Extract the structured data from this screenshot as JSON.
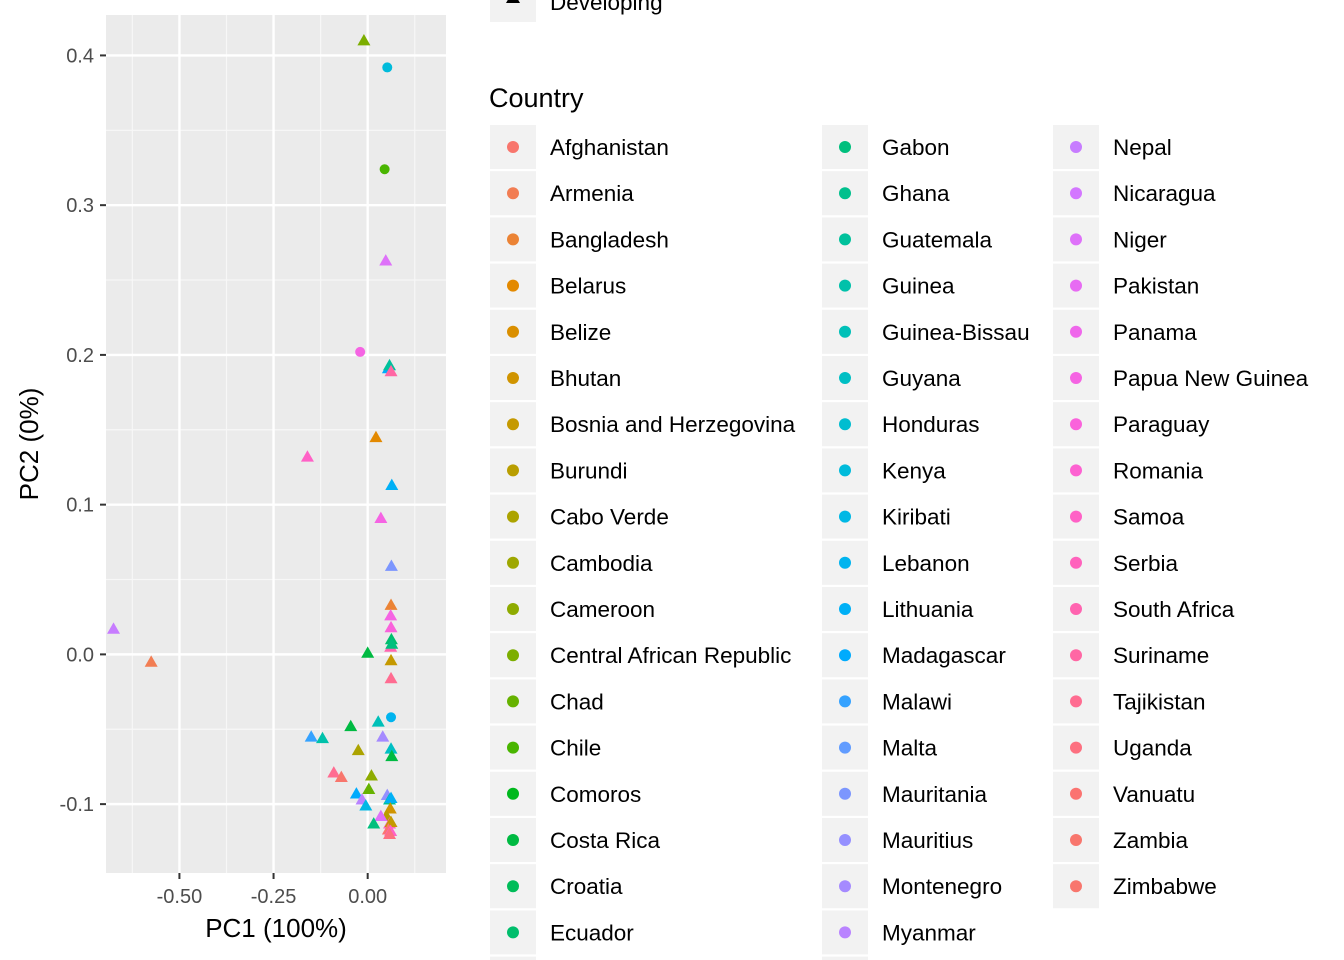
{
  "chart_data": {
    "type": "scatter",
    "xlabel": "PC1 (100%)",
    "ylabel": "PC2 (0%)",
    "xlim": [
      -0.695,
      0.208
    ],
    "ylim": [
      -0.146,
      0.427
    ],
    "x_ticks": [
      -0.5,
      -0.25,
      0.0
    ],
    "x_tick_labels": [
      "-0.50",
      "-0.25",
      "0.00"
    ],
    "y_ticks": [
      -0.1,
      0.0,
      0.1,
      0.2,
      0.3,
      0.4
    ],
    "y_tick_labels": [
      "-0.1",
      "0.0",
      "0.1",
      "0.2",
      "0.3",
      "0.4"
    ],
    "grid": true,
    "shape_legend": {
      "title": "",
      "entries": [
        {
          "label": "Developing",
          "shape": "triangle"
        }
      ]
    },
    "color_legend": {
      "title": "Country",
      "placement": "right",
      "entries": [
        {
          "label": "Afghanistan",
          "color": "#F8766D"
        },
        {
          "label": "Armenia",
          "color": "#F27D53"
        },
        {
          "label": "Bangladesh",
          "color": "#EB8335"
        },
        {
          "label": "Belarus",
          "color": "#E38900"
        },
        {
          "label": "Belize",
          "color": "#DA8F00"
        },
        {
          "label": "Bhutan",
          "color": "#D09400"
        },
        {
          "label": "Bosnia and Herzegovina",
          "color": "#C59900"
        },
        {
          "label": "Burundi",
          "color": "#B99E00"
        },
        {
          "label": "Cabo Verde",
          "color": "#ACA300"
        },
        {
          "label": "Cambodia",
          "color": "#9EA700"
        },
        {
          "label": "Cameroon",
          "color": "#8EAB00"
        },
        {
          "label": "Central African Republic",
          "color": "#7CAE00"
        },
        {
          "label": "Chad",
          "color": "#66B200"
        },
        {
          "label": "Chile",
          "color": "#49B500"
        },
        {
          "label": "Comoros",
          "color": "#00B81D"
        },
        {
          "label": "Costa Rica",
          "color": "#00BA42"
        },
        {
          "label": "Croatia",
          "color": "#00BC59"
        },
        {
          "label": "Ecuador",
          "color": "#00BE6C"
        },
        {
          "label": "Gabon",
          "color": "#00BF7D"
        },
        {
          "label": "Ghana",
          "color": "#00C08D"
        },
        {
          "label": "Guatemala",
          "color": "#00C19C"
        },
        {
          "label": "Guinea",
          "color": "#00C1AA"
        },
        {
          "label": "Guinea-Bissau",
          "color": "#00C0B8"
        },
        {
          "label": "Guyana",
          "color": "#00BFC4"
        },
        {
          "label": "Honduras",
          "color": "#00BDD0"
        },
        {
          "label": "Kenya",
          "color": "#00BBDB"
        },
        {
          "label": "Kiribati",
          "color": "#00B8E5"
        },
        {
          "label": "Lebanon",
          "color": "#00B4EF"
        },
        {
          "label": "Lithuania",
          "color": "#00B0F6"
        },
        {
          "label": "Madagascar",
          "color": "#00ABFD"
        },
        {
          "label": "Malawi",
          "color": "#35A2FF"
        },
        {
          "label": "Malta",
          "color": "#619CFF"
        },
        {
          "label": "Mauritania",
          "color": "#7C96FE"
        },
        {
          "label": "Mauritius",
          "color": "#9590FF"
        },
        {
          "label": "Montenegro",
          "color": "#A58AFF"
        },
        {
          "label": "Myanmar",
          "color": "#B983FF"
        },
        {
          "label": "Nepal",
          "color": "#C77CFF"
        },
        {
          "label": "Nicaragua",
          "color": "#D376FF"
        },
        {
          "label": "Niger",
          "color": "#DE71F9"
        },
        {
          "label": "Pakistan",
          "color": "#E76BF3"
        },
        {
          "label": "Panama",
          "color": "#EF67EB"
        },
        {
          "label": "Papua New Guinea",
          "color": "#F564E3"
        },
        {
          "label": "Paraguay",
          "color": "#FA62DB"
        },
        {
          "label": "Romania",
          "color": "#FD61D1"
        },
        {
          "label": "Samoa",
          "color": "#FF61C6"
        },
        {
          "label": "Serbia",
          "color": "#FF62BC"
        },
        {
          "label": "South Africa",
          "color": "#FF64B0"
        },
        {
          "label": "Suriname",
          "color": "#FF67A4"
        },
        {
          "label": "Tajikistan",
          "color": "#FF6C91"
        },
        {
          "label": "Uganda",
          "color": "#FD7080"
        },
        {
          "label": "Vanuatu",
          "color": "#FB7370"
        },
        {
          "label": "Zambia",
          "color": "#F8766D"
        },
        {
          "label": "Zimbabwe",
          "color": "#F8766D"
        }
      ],
      "visible_order_columns": [
        [
          "Afghanistan",
          "Armenia",
          "Bangladesh",
          "Belarus",
          "Belize",
          "Bhutan",
          "Bosnia and Herzegovina",
          "Burundi",
          "Cabo Verde",
          "Cambodia",
          "Cameroon",
          "Central African Republic",
          "Chad",
          "Chile",
          "Comoros",
          "Costa Rica",
          "Croatia",
          "Ecuador"
        ],
        [
          "Gabon",
          "Ghana",
          "Guatemala",
          "Guinea",
          "Guinea-Bissau",
          "Guyana",
          "Honduras",
          "Kenya",
          "Kiribati",
          "Lebanon",
          "Lithuania",
          "Madagascar",
          "Malawi",
          "Malta",
          "Mauritania",
          "Mauritius",
          "Montenegro",
          "Myanmar"
        ],
        [
          "Nepal",
          "Nicaragua",
          "Niger",
          "Pakistan",
          "Panama",
          "Papua New Guinea",
          "Paraguay",
          "Romania",
          "Samoa",
          "Serbia",
          "South Africa",
          "Suriname",
          "Tajikistan",
          "Uganda",
          "Vanuatu",
          "Zambia",
          "Zimbabwe"
        ]
      ]
    },
    "points": [
      {
        "x": -0.01,
        "y": 0.41,
        "shape": "triangle",
        "color": "#7CAE00"
      },
      {
        "x": 0.052,
        "y": 0.392,
        "shape": "circle",
        "color": "#00BBDB"
      },
      {
        "x": 0.045,
        "y": 0.324,
        "shape": "circle",
        "color": "#49B500"
      },
      {
        "x": 0.048,
        "y": 0.263,
        "shape": "triangle",
        "color": "#DE71F9"
      },
      {
        "x": -0.02,
        "y": 0.202,
        "shape": "circle",
        "color": "#F564E3"
      },
      {
        "x": 0.055,
        "y": 0.191,
        "shape": "triangle",
        "color": "#00ABFD"
      },
      {
        "x": 0.058,
        "y": 0.193,
        "shape": "triangle",
        "color": "#00C19C"
      },
      {
        "x": 0.062,
        "y": 0.189,
        "shape": "triangle",
        "color": "#FF67A4"
      },
      {
        "x": -0.16,
        "y": 0.132,
        "shape": "triangle",
        "color": "#FF61C6"
      },
      {
        "x": 0.022,
        "y": 0.145,
        "shape": "triangle",
        "color": "#E38900"
      },
      {
        "x": 0.064,
        "y": 0.113,
        "shape": "triangle",
        "color": "#00B0F6"
      },
      {
        "x": 0.035,
        "y": 0.091,
        "shape": "triangle",
        "color": "#F564E3"
      },
      {
        "x": 0.063,
        "y": 0.059,
        "shape": "triangle",
        "color": "#7C96FE"
      },
      {
        "x": 0.062,
        "y": 0.033,
        "shape": "triangle",
        "color": "#EB8335"
      },
      {
        "x": 0.061,
        "y": 0.026,
        "shape": "triangle",
        "color": "#F564E3"
      },
      {
        "x": 0.062,
        "y": 0.018,
        "shape": "triangle",
        "color": "#FA62DB"
      },
      {
        "x": 0.063,
        "y": 0.01,
        "shape": "triangle",
        "color": "#00BE6C"
      },
      {
        "x": 0.061,
        "y": 0.005,
        "shape": "triangle",
        "color": "#FF64B0"
      },
      {
        "x": 0.064,
        "y": 0.007,
        "shape": "triangle",
        "color": "#00BF7D"
      },
      {
        "x": -0.675,
        "y": 0.017,
        "shape": "triangle",
        "color": "#C77CFF"
      },
      {
        "x": -0.575,
        "y": -0.005,
        "shape": "triangle",
        "color": "#F27D53"
      },
      {
        "x": 0.0,
        "y": 0.001,
        "shape": "triangle",
        "color": "#00BA42"
      },
      {
        "x": 0.062,
        "y": -0.004,
        "shape": "triangle",
        "color": "#C59900"
      },
      {
        "x": 0.062,
        "y": -0.016,
        "shape": "triangle",
        "color": "#FF6C91"
      },
      {
        "x": 0.062,
        "y": -0.042,
        "shape": "circle",
        "color": "#00B4EF"
      },
      {
        "x": 0.028,
        "y": -0.045,
        "shape": "triangle",
        "color": "#00C0B8"
      },
      {
        "x": -0.045,
        "y": -0.048,
        "shape": "triangle",
        "color": "#00BA42"
      },
      {
        "x": 0.04,
        "y": -0.055,
        "shape": "triangle",
        "color": "#A58AFF"
      },
      {
        "x": -0.15,
        "y": -0.055,
        "shape": "triangle",
        "color": "#35A2FF"
      },
      {
        "x": -0.12,
        "y": -0.056,
        "shape": "triangle",
        "color": "#00C1AA"
      },
      {
        "x": 0.062,
        "y": -0.063,
        "shape": "triangle",
        "color": "#00BFC4"
      },
      {
        "x": -0.025,
        "y": -0.064,
        "shape": "triangle",
        "color": "#ACA300"
      },
      {
        "x": 0.064,
        "y": -0.068,
        "shape": "triangle",
        "color": "#00BA42"
      },
      {
        "x": -0.09,
        "y": -0.079,
        "shape": "triangle",
        "color": "#FF6C91"
      },
      {
        "x": -0.07,
        "y": -0.082,
        "shape": "triangle",
        "color": "#F8766D"
      },
      {
        "x": 0.01,
        "y": -0.081,
        "shape": "triangle",
        "color": "#8EAB00"
      },
      {
        "x": 0.003,
        "y": -0.09,
        "shape": "triangle",
        "color": "#66B200"
      },
      {
        "x": -0.03,
        "y": -0.093,
        "shape": "triangle",
        "color": "#00ABFD"
      },
      {
        "x": -0.015,
        "y": -0.097,
        "shape": "triangle",
        "color": "#B983FF"
      },
      {
        "x": -0.005,
        "y": -0.101,
        "shape": "triangle",
        "color": "#00B8E5"
      },
      {
        "x": 0.052,
        "y": -0.094,
        "shape": "triangle",
        "color": "#9590FF"
      },
      {
        "x": 0.058,
        "y": -0.097,
        "shape": "triangle",
        "color": "#00C19C"
      },
      {
        "x": 0.062,
        "y": -0.096,
        "shape": "triangle",
        "color": "#00B0F6"
      },
      {
        "x": 0.06,
        "y": -0.103,
        "shape": "triangle",
        "color": "#D09400"
      },
      {
        "x": 0.05,
        "y": -0.108,
        "shape": "triangle",
        "color": "#B99E00"
      },
      {
        "x": 0.035,
        "y": -0.108,
        "shape": "triangle",
        "color": "#DE71F9"
      },
      {
        "x": 0.016,
        "y": -0.113,
        "shape": "triangle",
        "color": "#00BF7D"
      },
      {
        "x": 0.058,
        "y": -0.113,
        "shape": "triangle",
        "color": "#FF62BC"
      },
      {
        "x": 0.062,
        "y": -0.112,
        "shape": "triangle",
        "color": "#C59900"
      },
      {
        "x": 0.055,
        "y": -0.117,
        "shape": "triangle",
        "color": "#FB7370"
      },
      {
        "x": 0.061,
        "y": -0.118,
        "shape": "triangle",
        "color": "#FF61C6"
      },
      {
        "x": 0.058,
        "y": -0.12,
        "shape": "triangle",
        "color": "#FD7080"
      }
    ]
  }
}
